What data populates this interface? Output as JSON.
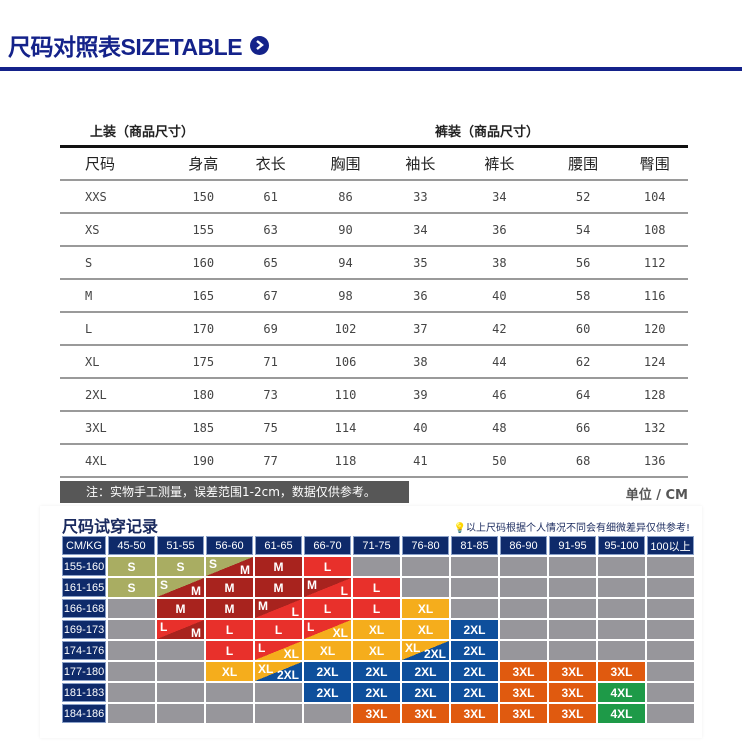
{
  "header": {
    "title": "尺码对照表SIZETABLE",
    "arrow_icon": "chevron-right-circle-icon",
    "accent_color": "#14228a"
  },
  "size_table": {
    "top_label": "上装（商品尺寸）",
    "bottom_label": "裤装（商品尺寸）",
    "columns": [
      "尺码",
      "身高",
      "衣长",
      "胸围",
      "袖长",
      "裤长",
      "腰围",
      "臀围"
    ],
    "rows": [
      [
        "XXS",
        "150",
        "61",
        "86",
        "33",
        "34",
        "52",
        "104"
      ],
      [
        "XS",
        "155",
        "63",
        "90",
        "34",
        "36",
        "54",
        "108"
      ],
      [
        "S",
        "160",
        "65",
        "94",
        "35",
        "38",
        "56",
        "112"
      ],
      [
        "M",
        "165",
        "67",
        "98",
        "36",
        "40",
        "58",
        "116"
      ],
      [
        "L",
        "170",
        "69",
        "102",
        "37",
        "42",
        "60",
        "120"
      ],
      [
        "XL",
        "175",
        "71",
        "106",
        "38",
        "44",
        "62",
        "124"
      ],
      [
        "2XL",
        "180",
        "73",
        "110",
        "39",
        "46",
        "64",
        "128"
      ],
      [
        "3XL",
        "185",
        "75",
        "114",
        "40",
        "48",
        "66",
        "132"
      ],
      [
        "4XL",
        "190",
        "77",
        "118",
        "41",
        "50",
        "68",
        "136"
      ]
    ],
    "note": "注：实物手工测量，误差范围1-2cm，数据仅供参考。",
    "unit": "单位 / CM"
  },
  "fitting": {
    "title": "尺码试穿记录",
    "hint": "以上尺码根据个人情况不同会有细微差异仅供参考!",
    "hint_icon": "lightbulb-icon",
    "corner": "CM/KG",
    "weights": [
      "45-50",
      "51-55",
      "56-60",
      "61-65",
      "66-70",
      "71-75",
      "76-80",
      "81-85",
      "86-90",
      "91-95",
      "95-100",
      "100以上"
    ],
    "heights": [
      "155-160",
      "161-165",
      "166-168",
      "169-173",
      "174-176",
      "177-180",
      "181-183",
      "184-186"
    ],
    "colors": {
      "S": "#a9ad62",
      "M": "#a8231e",
      "L": "#e8302b",
      "XL": "#f5ad1c",
      "2XL": "#0e4f9c",
      "3XL": "#e05a0f",
      "4XL": "#1e9a48",
      "empty": "#97969b"
    },
    "cells": [
      [
        "S",
        "S",
        "S/M",
        "M",
        "L",
        "",
        "",
        "",
        "",
        "",
        "",
        ""
      ],
      [
        "S",
        "S/M",
        "M",
        "M",
        "M/L",
        "L",
        "",
        "",
        "",
        "",
        "",
        ""
      ],
      [
        "",
        "M",
        "M",
        "M/L",
        "L",
        "L",
        "XL",
        "",
        "",
        "",
        "",
        ""
      ],
      [
        "",
        "L/M",
        "L",
        "L",
        "L/XL",
        "XL",
        "XL",
        "2XL",
        "",
        "",
        "",
        ""
      ],
      [
        "",
        "",
        "L",
        "L/XL",
        "XL",
        "XL",
        "XL/2XL",
        "2XL",
        "",
        "",
        "",
        ""
      ],
      [
        "",
        "",
        "XL",
        "XL/2XL",
        "2XL",
        "2XL",
        "2XL",
        "2XL",
        "3XL",
        "3XL",
        "3XL",
        ""
      ],
      [
        "",
        "",
        "",
        "",
        "2XL",
        "2XL",
        "2XL",
        "2XL",
        "3XL",
        "3XL",
        "4XL",
        ""
      ],
      [
        "",
        "",
        "",
        "",
        "",
        "3XL",
        "3XL",
        "3XL",
        "3XL",
        "3XL",
        "4XL",
        ""
      ]
    ]
  }
}
